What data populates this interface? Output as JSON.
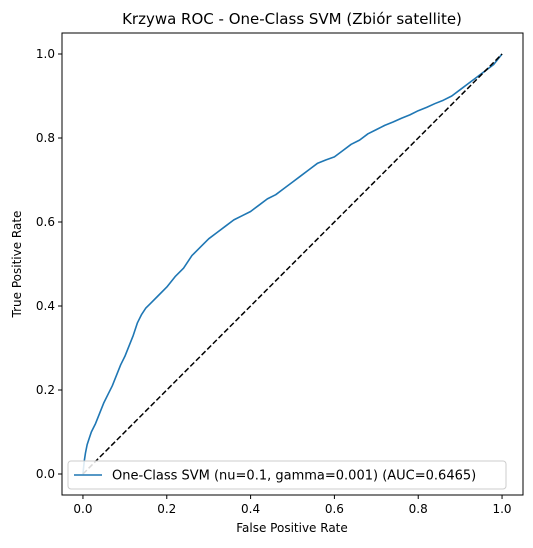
{
  "chart_data": {
    "type": "line",
    "title": "Krzywa ROC - One-Class SVM (Zbiór satellite)",
    "xlabel": "False Positive Rate",
    "ylabel": "True Positive Rate",
    "xlim": [
      -0.05,
      1.05
    ],
    "ylim": [
      -0.05,
      1.05
    ],
    "xticks": [
      0.0,
      0.2,
      0.4,
      0.6,
      0.8,
      1.0
    ],
    "yticks": [
      0.0,
      0.2,
      0.4,
      0.6,
      0.8,
      1.0
    ],
    "xtick_labels": [
      "0.0",
      "0.2",
      "0.4",
      "0.6",
      "0.8",
      "1.0"
    ],
    "ytick_labels": [
      "0.0",
      "0.2",
      "0.4",
      "0.6",
      "0.8",
      "1.0"
    ],
    "grid": false,
    "legend_position": "lower-right",
    "series": [
      {
        "name": "One-Class SVM (nu=0.1, gamma=0.001) (AUC=0.6465)",
        "color": "#1f77b4",
        "style": "solid",
        "x": [
          0.0,
          0.003,
          0.006,
          0.01,
          0.015,
          0.02,
          0.03,
          0.04,
          0.05,
          0.06,
          0.07,
          0.08,
          0.09,
          0.1,
          0.11,
          0.12,
          0.13,
          0.14,
          0.15,
          0.16,
          0.18,
          0.2,
          0.22,
          0.24,
          0.26,
          0.28,
          0.3,
          0.32,
          0.34,
          0.36,
          0.38,
          0.4,
          0.42,
          0.44,
          0.46,
          0.48,
          0.5,
          0.52,
          0.54,
          0.56,
          0.58,
          0.6,
          0.62,
          0.64,
          0.66,
          0.68,
          0.7,
          0.72,
          0.74,
          0.76,
          0.78,
          0.8,
          0.82,
          0.84,
          0.86,
          0.88,
          0.9,
          0.92,
          0.94,
          0.96,
          0.98,
          1.0
        ],
        "y": [
          0.0,
          0.03,
          0.05,
          0.07,
          0.085,
          0.1,
          0.12,
          0.145,
          0.17,
          0.19,
          0.21,
          0.235,
          0.26,
          0.28,
          0.305,
          0.33,
          0.36,
          0.38,
          0.395,
          0.405,
          0.425,
          0.445,
          0.47,
          0.49,
          0.52,
          0.54,
          0.56,
          0.575,
          0.59,
          0.605,
          0.615,
          0.625,
          0.64,
          0.655,
          0.665,
          0.68,
          0.695,
          0.71,
          0.725,
          0.74,
          0.748,
          0.755,
          0.77,
          0.785,
          0.795,
          0.81,
          0.82,
          0.83,
          0.838,
          0.847,
          0.855,
          0.865,
          0.873,
          0.882,
          0.89,
          0.9,
          0.915,
          0.93,
          0.945,
          0.96,
          0.975,
          1.0
        ]
      },
      {
        "color": "#000000",
        "style": "dashed",
        "x": [
          0.0,
          1.0
        ],
        "y": [
          0.0,
          1.0
        ]
      }
    ]
  }
}
